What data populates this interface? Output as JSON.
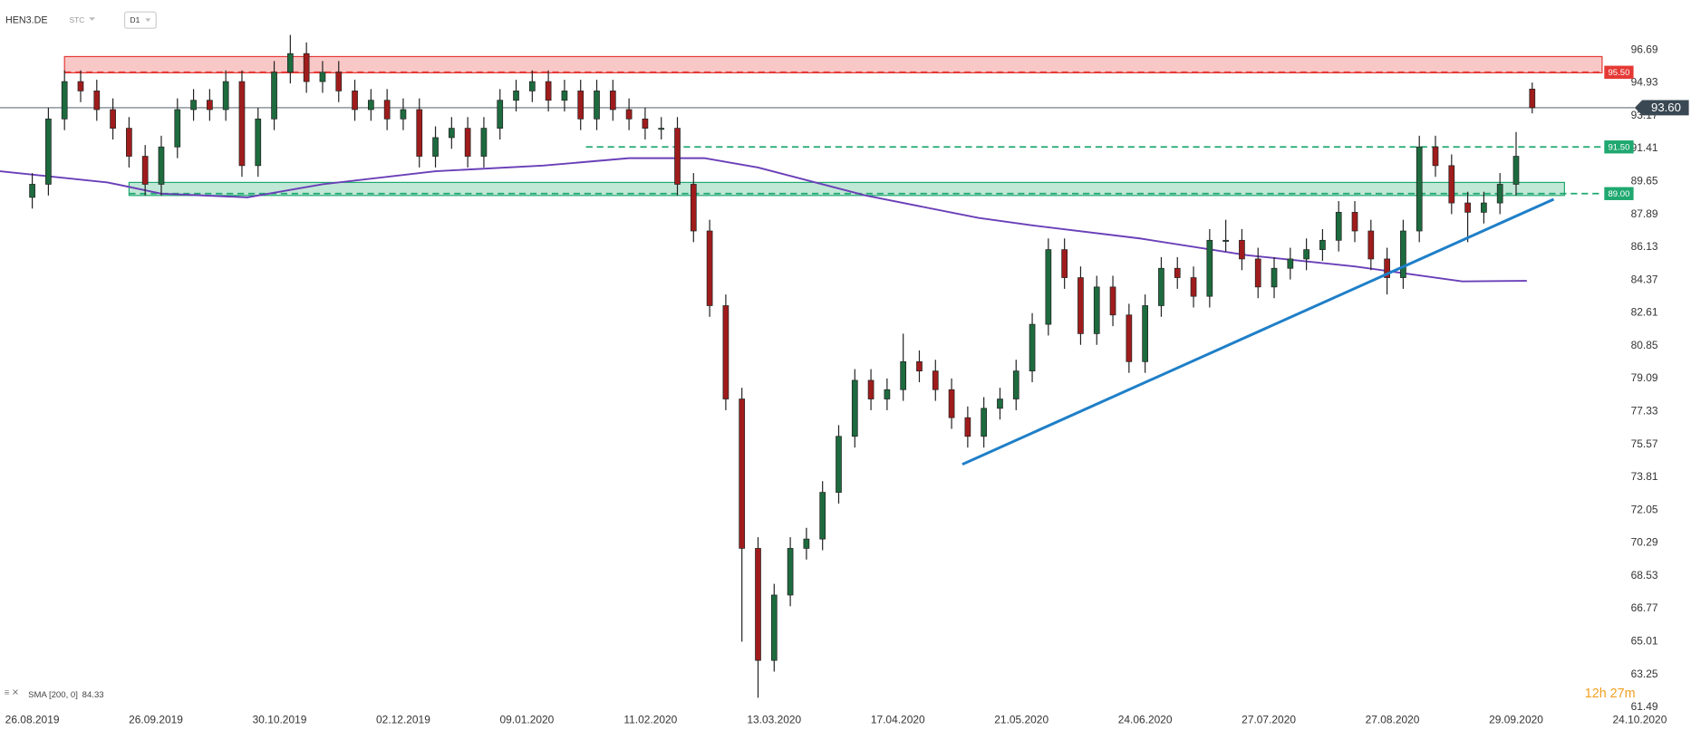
{
  "chart_data": {
    "type": "candlestick",
    "symbol": "HEN3.DE",
    "price_type": "STC",
    "timeframe": "D1",
    "countdown": "12h 27m",
    "up_color": "#1d6b3e",
    "down_color": "#a01c1c",
    "xlim": [
      -6,
      292
    ],
    "ylim": [
      60.97,
      99.37
    ],
    "xticks": [
      {
        "value": 0,
        "label": "26.08.2019"
      },
      {
        "value": 23,
        "label": "26.09.2019"
      },
      {
        "value": 46,
        "label": "30.10.2019"
      },
      {
        "value": 69,
        "label": "02.12.2019"
      },
      {
        "value": 92,
        "label": "09.01.2020"
      },
      {
        "value": 115,
        "label": "11.02.2020"
      },
      {
        "value": 138,
        "label": "13.03.2020"
      },
      {
        "value": 161,
        "label": "17.04.2020"
      },
      {
        "value": 184,
        "label": "21.05.2020"
      },
      {
        "value": 207,
        "label": "24.06.2020"
      },
      {
        "value": 230,
        "label": "27.07.2020"
      },
      {
        "value": 253,
        "label": "27.08.2020"
      },
      {
        "value": 276,
        "label": "29.09.2020"
      },
      {
        "value": 299,
        "label": "24.10.2020"
      }
    ],
    "yticks": [
      96.69,
      94.93,
      93.17,
      91.41,
      89.65,
      87.89,
      86.13,
      84.37,
      82.61,
      80.85,
      79.09,
      77.33,
      75.57,
      73.81,
      72.05,
      70.29,
      68.53,
      66.77,
      65.01,
      63.25,
      61.49
    ],
    "x": [
      0,
      3,
      6,
      9,
      12,
      15,
      18,
      21,
      24,
      27,
      30,
      33,
      36,
      39,
      42,
      45,
      48,
      51,
      54,
      57,
      60,
      63,
      66,
      69,
      72,
      75,
      78,
      81,
      84,
      87,
      90,
      93,
      96,
      99,
      102,
      105,
      108,
      111,
      114,
      117,
      120,
      123,
      126,
      129,
      132,
      135,
      138,
      141,
      144,
      147,
      150,
      153,
      156,
      159,
      162,
      165,
      168,
      171,
      174,
      177,
      180,
      183,
      186,
      189,
      192,
      195,
      198,
      201,
      204,
      207,
      210,
      213,
      216,
      219,
      222,
      225,
      228,
      231,
      234,
      237,
      240,
      243,
      246,
      249,
      252,
      255,
      258,
      261,
      264,
      267,
      270,
      273,
      276,
      279
    ],
    "open": [
      88.8,
      89.5,
      93,
      95,
      94.5,
      93.5,
      92.5,
      91,
      89.5,
      91.5,
      93.5,
      94,
      93.5,
      95,
      90.5,
      93,
      95.5,
      96.5,
      95,
      95.5,
      94.5,
      93.5,
      94,
      93,
      93.5,
      91,
      92,
      92.5,
      91,
      92.5,
      94,
      94.5,
      95,
      94,
      94.5,
      93,
      94.5,
      93.5,
      93,
      92.5,
      92.5,
      89.5,
      87,
      83,
      78,
      70,
      64,
      67.5,
      70,
      70.5,
      73,
      76,
      79,
      78,
      78.5,
      80,
      79.5,
      78.5,
      77,
      76,
      77.5,
      78,
      79.5,
      82,
      86,
      84.5,
      81.5,
      84,
      82.5,
      80,
      83,
      85,
      84.5,
      83.5,
      86.5,
      86.5,
      85.5,
      84,
      85,
      85.5,
      86,
      86.5,
      88,
      87,
      85.5,
      84.5,
      87,
      91.5,
      90.5,
      88.5,
      88,
      88.5,
      89.5,
      94.6
    ],
    "high": [
      90.1,
      93.6,
      95.6,
      95.6,
      95.1,
      94.1,
      93.1,
      91.6,
      92.1,
      94.1,
      94.6,
      94.6,
      95.6,
      95.6,
      93.6,
      96.1,
      97.5,
      97.1,
      96.1,
      96.1,
      95.1,
      94.6,
      94.6,
      94.1,
      94.1,
      92.6,
      93.1,
      93.1,
      93.1,
      94.6,
      95.1,
      95.6,
      95.6,
      95.1,
      95.1,
      95.1,
      95.1,
      94.1,
      93.6,
      93.1,
      93.1,
      90.1,
      87.6,
      83.6,
      78.6,
      70.6,
      68.1,
      70.6,
      71.1,
      73.6,
      76.6,
      79.6,
      79.6,
      79.1,
      81.5,
      80.6,
      80.1,
      79.1,
      77.6,
      78.1,
      78.6,
      80.1,
      82.6,
      86.6,
      86.6,
      85.1,
      84.6,
      84.6,
      83.1,
      83.6,
      85.6,
      85.6,
      85.1,
      87.1,
      87.6,
      87.1,
      86.1,
      85.6,
      86.1,
      86.6,
      87.1,
      88.6,
      88.6,
      87.6,
      86.1,
      87.6,
      92.1,
      92.1,
      91.1,
      89.1,
      89.1,
      90.1,
      92.3,
      94.95
    ],
    "low": [
      88.2,
      88.9,
      92.4,
      93.9,
      92.9,
      91.9,
      90.4,
      88.9,
      88.9,
      90.9,
      92.9,
      92.9,
      92.9,
      89.9,
      89.9,
      92.4,
      94.9,
      94.4,
      94.4,
      93.9,
      92.9,
      92.9,
      92.4,
      92.4,
      90.4,
      90.4,
      91.4,
      90.4,
      90.4,
      91.9,
      93.4,
      93.9,
      93.4,
      93.4,
      92.4,
      92.4,
      92.9,
      92.4,
      91.9,
      91.9,
      88.9,
      86.4,
      82.4,
      77.4,
      65,
      62,
      63.4,
      66.9,
      69.4,
      69.9,
      72.4,
      75.4,
      77.4,
      77.4,
      77.9,
      78.9,
      77.9,
      76.4,
      75.4,
      75.4,
      76.9,
      77.4,
      78.9,
      81.4,
      83.9,
      80.9,
      80.9,
      81.9,
      79.4,
      79.4,
      82.4,
      83.9,
      82.9,
      82.9,
      85.9,
      84.9,
      83.4,
      83.4,
      84.4,
      84.9,
      85.4,
      85.9,
      86.4,
      84.9,
      83.6,
      83.9,
      86.4,
      89.9,
      87.9,
      86.4,
      87.4,
      87.9,
      88.9,
      93.3
    ],
    "close": [
      89.5,
      93,
      95,
      94.5,
      93.5,
      92.5,
      91,
      89.5,
      91.5,
      93.5,
      94,
      93.5,
      95,
      90.5,
      93,
      95.5,
      96.5,
      95,
      95.5,
      94.5,
      93.5,
      94,
      93,
      93.5,
      91,
      92,
      92.5,
      91,
      92.5,
      94,
      94.5,
      95,
      94,
      94.5,
      93,
      94.5,
      93.5,
      93,
      92.5,
      92.5,
      89.5,
      87,
      83,
      78,
      70,
      64,
      67.5,
      70,
      70.5,
      73,
      76,
      79,
      78,
      78.5,
      80,
      79.5,
      78.5,
      77,
      76,
      77.5,
      78,
      79.5,
      82,
      86,
      84.5,
      81.5,
      84,
      82.5,
      80,
      83,
      85,
      84.5,
      83.5,
      86.5,
      86.5,
      85.5,
      84,
      85,
      85.5,
      86,
      86.5,
      88,
      87,
      85.5,
      84.5,
      87,
      91.5,
      90.5,
      88.5,
      88,
      88.5,
      89.5,
      91,
      93.6
    ],
    "sma": {
      "label": "SMA [200, 0]",
      "color": "#6a3fb8",
      "x": [
        -6,
        14,
        24,
        40,
        54,
        75,
        95,
        111,
        125,
        135,
        155,
        176,
        186,
        206,
        226,
        246,
        256,
        266,
        278
      ],
      "values": [
        90.2,
        89.6,
        89.0,
        88.8,
        89.5,
        90.2,
        90.5,
        90.9,
        90.9,
        90.4,
        88.9,
        87.7,
        87.3,
        86.6,
        85.7,
        85.1,
        84.7,
        84.3,
        84.33
      ]
    },
    "zones": [
      {
        "x": [
          6,
          292
        ],
        "range": [
          95.47,
          96.34
        ],
        "color": "#e53935"
      },
      {
        "x": [
          18,
          285
        ],
        "range": [
          88.9,
          89.6
        ],
        "color": "#1fa870"
      }
    ],
    "levels": [
      {
        "value": 95.5,
        "label": "95.50",
        "from_x": 6,
        "color": "#e53935"
      },
      {
        "value": 91.5,
        "label": "91.50",
        "from_x": 103,
        "color": "#1fa870"
      },
      {
        "value": 89.0,
        "label": "89.00",
        "from_x": 18,
        "color": "#1fa870"
      }
    ],
    "trendline": {
      "x": [
        173,
        283
      ],
      "values": [
        74.5,
        88.7
      ],
      "color": "#1f7fc8"
    },
    "last_price": {
      "value": 93.6,
      "label": "93.60",
      "color": "#3a4853"
    }
  }
}
